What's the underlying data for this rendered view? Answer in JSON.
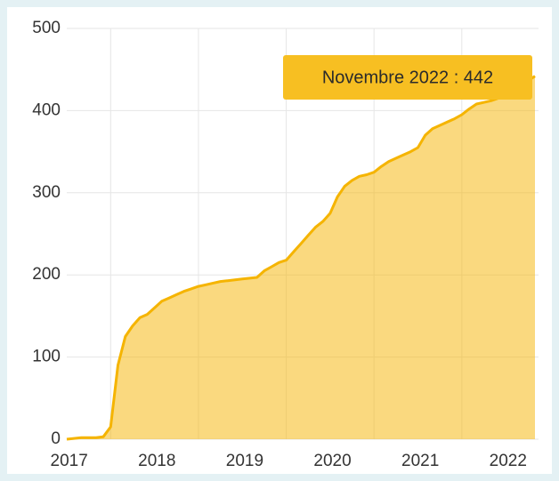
{
  "chart_data": {
    "type": "area",
    "x": [
      "2017-07",
      "2017-08",
      "2017-09",
      "2017-10",
      "2017-11",
      "2017-12",
      "2018-01",
      "2018-02",
      "2018-03",
      "2018-04",
      "2018-05",
      "2018-06",
      "2018-07",
      "2018-08",
      "2018-09",
      "2018-10",
      "2018-11",
      "2018-12",
      "2019-01",
      "2019-02",
      "2019-03",
      "2019-04",
      "2019-05",
      "2019-06",
      "2019-07",
      "2019-08",
      "2019-09",
      "2019-10",
      "2019-11",
      "2019-12",
      "2020-01",
      "2020-02",
      "2020-03",
      "2020-04",
      "2020-05",
      "2020-06",
      "2020-07",
      "2020-08",
      "2020-09",
      "2020-10",
      "2020-11",
      "2020-12",
      "2021-01",
      "2021-02",
      "2021-03",
      "2021-04",
      "2021-05",
      "2021-06",
      "2021-07",
      "2021-08",
      "2021-09",
      "2021-10",
      "2021-11",
      "2021-12",
      "2022-01",
      "2022-02",
      "2022-03",
      "2022-04",
      "2022-05",
      "2022-06",
      "2022-07",
      "2022-08",
      "2022-09",
      "2022-10",
      "2022-11"
    ],
    "values": [
      0,
      1,
      2,
      2,
      2,
      3,
      15,
      90,
      125,
      138,
      148,
      152,
      160,
      168,
      172,
      176,
      180,
      183,
      186,
      188,
      190,
      192,
      193,
      194,
      195,
      196,
      197,
      205,
      210,
      215,
      218,
      228,
      238,
      248,
      258,
      265,
      275,
      295,
      308,
      315,
      320,
      322,
      325,
      332,
      338,
      342,
      346,
      350,
      355,
      370,
      378,
      382,
      386,
      390,
      395,
      402,
      408,
      410,
      412,
      415,
      420,
      425,
      430,
      436,
      442
    ],
    "color": "#f5b400",
    "xlim": [
      "2017-07",
      "2022-11"
    ],
    "xticks": [
      2017,
      2018,
      2019,
      2020,
      2021,
      2022
    ],
    "ylim": [
      0,
      500
    ],
    "yticks": [
      0,
      100,
      200,
      300,
      400,
      500
    ],
    "grid": true,
    "tooltip": "Novembre 2022 : 442"
  }
}
